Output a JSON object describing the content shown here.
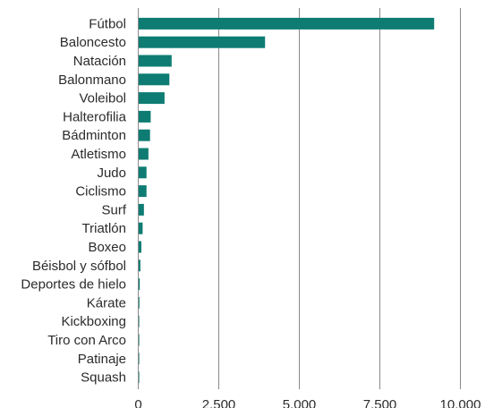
{
  "chart_data": {
    "type": "bar",
    "orientation": "horizontal",
    "title": "",
    "xlabel": "",
    "ylabel": "",
    "categories": [
      "Fútbol",
      "Baloncesto",
      "Natación",
      "Balonmano",
      "Voleibol",
      "Halterofilia",
      "Bádminton",
      "Atletismo",
      "Judo",
      "Ciclismo",
      "Surf",
      "Triatlón",
      "Boxeo",
      "Béisbol y sófbol",
      "Deportes de hielo",
      "Kárate",
      "Kickboxing",
      "Tiro con Arco",
      "Patinaje",
      "Squash"
    ],
    "values": [
      9200,
      3950,
      1050,
      980,
      830,
      400,
      380,
      330,
      270,
      270,
      190,
      150,
      110,
      80,
      60,
      50,
      40,
      35,
      10,
      5
    ],
    "xlim": [
      0,
      10000
    ],
    "xticks": [
      0,
      2500,
      5000,
      7500,
      10000
    ],
    "xtick_labels": [
      "0",
      "2.500",
      "5.000",
      "7.500",
      "10.000"
    ],
    "grid": true,
    "colors": {
      "bar": "#0e7c72",
      "grid": "#8a8a8a",
      "text": "#2b2b2b"
    }
  }
}
